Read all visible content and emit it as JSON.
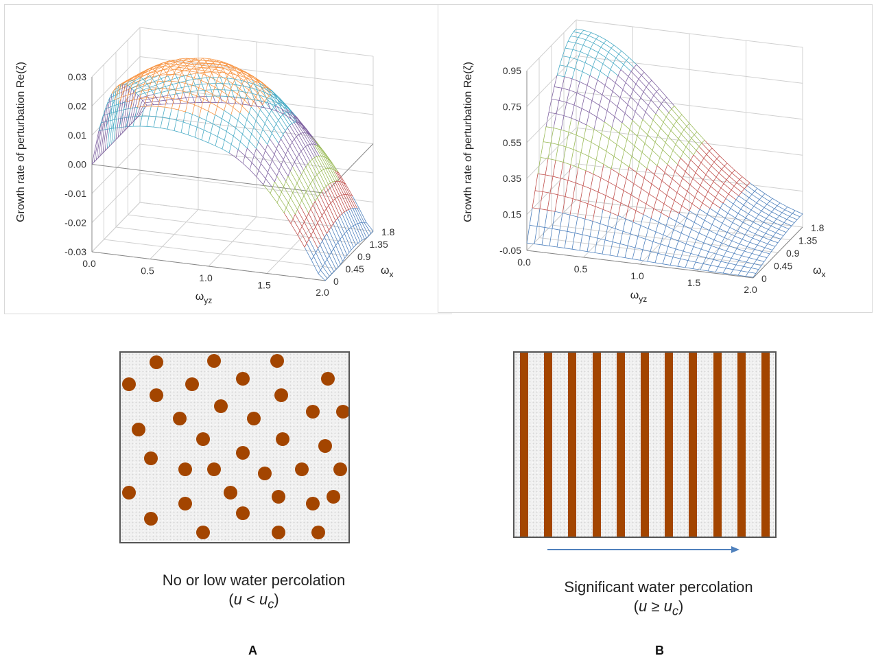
{
  "chart_data": [
    {
      "type": "surface3d",
      "ylabel": "Growth rate of perturbation Re(ζ)",
      "xlabel": "ω",
      "xlabel_sub": "yz",
      "zlabel": "ω",
      "zlabel_sub": "x",
      "x_ticks": [
        "0.0",
        "0.5",
        "1.0",
        "1.5",
        "2.0"
      ],
      "z_ticks": [
        "0",
        "0.45",
        "0.9",
        "1.35",
        "1.8"
      ],
      "y_ticks": [
        "0.03",
        "0.02",
        "0.01",
        "0.00",
        "-0.01",
        "-0.02",
        "-0.03"
      ],
      "ylim": [
        -0.03,
        0.03
      ],
      "xlim": [
        0,
        2
      ],
      "zlim": [
        0,
        1.8
      ],
      "band_colors": [
        "#4f81bd",
        "#c0504d",
        "#9bbb59",
        "#8064a2",
        "#4bacc6",
        "#f79646"
      ]
    },
    {
      "type": "surface3d",
      "ylabel": "Growth rate of perturbation Re(ζ)",
      "xlabel": "ω",
      "xlabel_sub": "yz",
      "zlabel": "ω",
      "zlabel_sub": "x",
      "x_ticks": [
        "0.0",
        "0.5",
        "1.0",
        "1.5",
        "2.0"
      ],
      "z_ticks": [
        "0",
        "0.45",
        "0.9",
        "1.35",
        "1.8"
      ],
      "y_ticks": [
        "0.95",
        "0.75",
        "0.55",
        "0.35",
        "0.15",
        "-0.05"
      ],
      "ylim": [
        -0.05,
        0.95
      ],
      "xlim": [
        0,
        2
      ],
      "zlim": [
        0,
        1.8
      ],
      "band_colors": [
        "#4f81bd",
        "#c0504d",
        "#9bbb59",
        "#8064a2",
        "#4bacc6"
      ]
    }
  ],
  "panel_a": {
    "caption_line1": "No or low water percolation",
    "caption_cond_open": "(",
    "caption_cond_var": "u",
    "caption_cond_op": " < ",
    "caption_cond_crit": "u",
    "caption_cond_sub": "c",
    "caption_cond_close": ")",
    "letter": "A",
    "particle_color": "#a34500"
  },
  "panel_b": {
    "caption_line1": "Significant water percolation",
    "caption_cond_open": "(",
    "caption_cond_var": "u",
    "caption_cond_op": " ≥ ",
    "caption_cond_crit": "u",
    "caption_cond_sub": "c",
    "caption_cond_close": ")",
    "letter": "B",
    "bar_color": "#a34500",
    "arrow_color": "#4f81bd"
  }
}
